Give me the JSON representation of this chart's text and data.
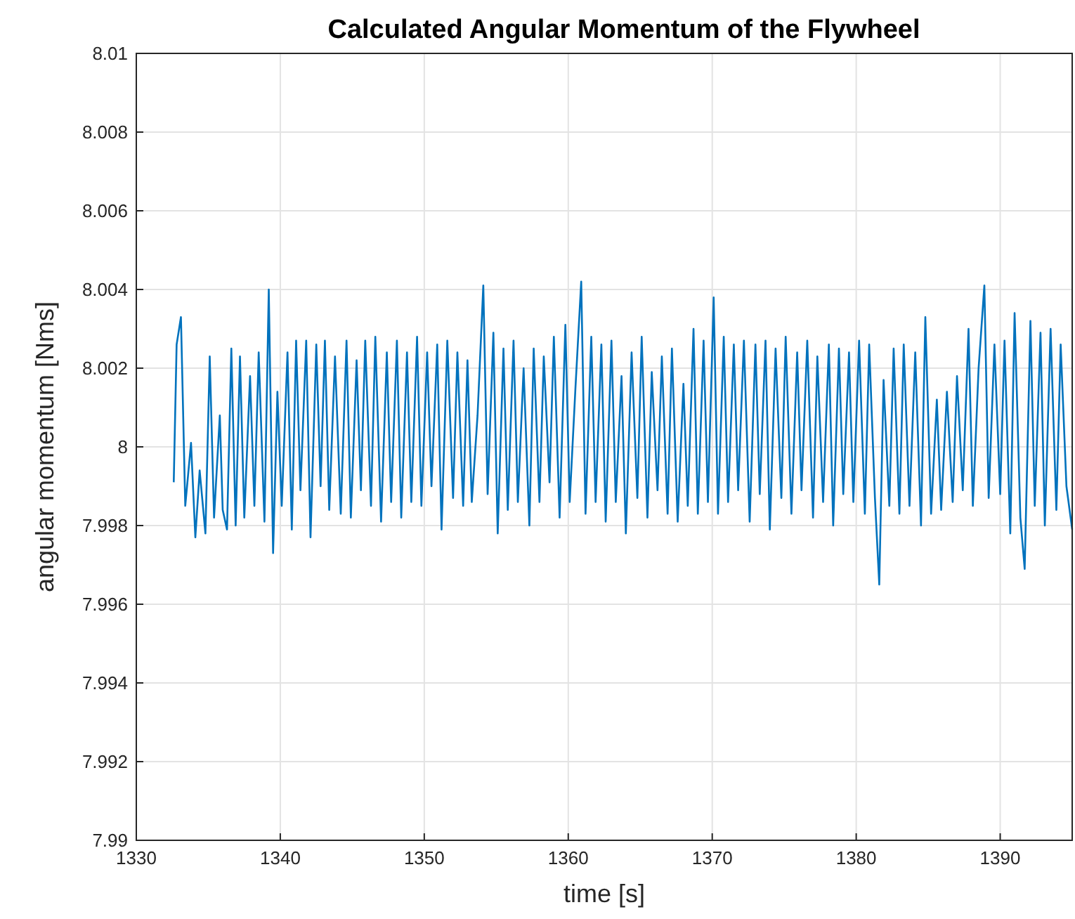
{
  "chart_data": {
    "type": "line",
    "title": "Calculated Angular Momentum of the Flywheel",
    "xlabel": "time [s]",
    "ylabel": "angular momentum [Nms]",
    "xlim": [
      1330,
      1395
    ],
    "xticks": [
      1330,
      1340,
      1350,
      1360,
      1370,
      1380,
      1390
    ],
    "ylim": [
      7.99,
      8.01
    ],
    "yticks": [
      7.99,
      7.992,
      7.994,
      7.996,
      7.998,
      {
        "value": 8,
        "label": "8"
      },
      8.002,
      8.004,
      8.006,
      8.008,
      8.01
    ],
    "grid": true,
    "marker": "none",
    "line_style": "solid",
    "series": [
      {
        "color": "#0072bd",
        "x": [
          1332.6,
          1332.8,
          1333.1,
          1333.4,
          1333.8,
          1334.1,
          1334.4,
          1334.8,
          1335.1,
          1335.4,
          1335.8,
          1336.0,
          1336.3,
          1336.6,
          1336.9,
          1337.2,
          1337.5,
          1337.9,
          1338.2,
          1338.5,
          1338.9,
          1339.2,
          1339.5,
          1339.8,
          1340.1,
          1340.5,
          1340.8,
          1341.1,
          1341.4,
          1341.8,
          1342.1,
          1342.5,
          1342.8,
          1343.1,
          1343.4,
          1343.8,
          1344.2,
          1344.6,
          1344.9,
          1345.3,
          1345.6,
          1345.9,
          1346.3,
          1346.6,
          1347.0,
          1347.4,
          1347.7,
          1348.1,
          1348.4,
          1348.8,
          1349.1,
          1349.5,
          1349.8,
          1350.2,
          1350.5,
          1350.9,
          1351.2,
          1351.6,
          1352.0,
          1352.3,
          1352.7,
          1353.0,
          1353.3,
          1353.7,
          1354.1,
          1354.4,
          1354.8,
          1355.1,
          1355.5,
          1355.8,
          1356.2,
          1356.5,
          1356.9,
          1357.3,
          1357.6,
          1358.0,
          1358.3,
          1358.7,
          1359.0,
          1359.4,
          1359.8,
          1360.1,
          1360.5,
          1360.9,
          1361.2,
          1361.6,
          1361.9,
          1362.3,
          1362.6,
          1363.0,
          1363.3,
          1363.7,
          1364.0,
          1364.4,
          1364.8,
          1365.1,
          1365.5,
          1365.8,
          1366.2,
          1366.5,
          1366.9,
          1367.2,
          1367.6,
          1368.0,
          1368.3,
          1368.7,
          1369.0,
          1369.4,
          1369.7,
          1370.1,
          1370.4,
          1370.8,
          1371.1,
          1371.5,
          1371.8,
          1372.2,
          1372.6,
          1373.0,
          1373.3,
          1373.7,
          1374.0,
          1374.4,
          1374.8,
          1375.1,
          1375.5,
          1375.9,
          1376.2,
          1376.6,
          1377.0,
          1377.3,
          1377.7,
          1378.1,
          1378.4,
          1378.8,
          1379.1,
          1379.5,
          1379.8,
          1380.2,
          1380.6,
          1380.9,
          1381.3,
          1381.6,
          1381.9,
          1382.3,
          1382.6,
          1383.0,
          1383.3,
          1383.7,
          1384.1,
          1384.5,
          1384.8,
          1385.2,
          1385.6,
          1385.9,
          1386.3,
          1386.7,
          1387.0,
          1387.4,
          1387.8,
          1388.1,
          1388.5,
          1388.9,
          1389.2,
          1389.6,
          1390.0,
          1390.3,
          1390.7,
          1391.0,
          1391.4,
          1391.7,
          1392.1,
          1392.4,
          1392.8,
          1393.1,
          1393.5,
          1393.9,
          1394.2,
          1394.6,
          1395.0
        ],
        "values": [
          7.9991,
          8.0026,
          8.0033,
          7.9985,
          8.0001,
          7.9977,
          7.9994,
          7.9978,
          8.0023,
          7.9982,
          8.0008,
          7.9984,
          7.9979,
          8.0025,
          7.998,
          8.0023,
          7.9982,
          8.0018,
          7.9985,
          8.0024,
          7.9981,
          8.004,
          7.9973,
          8.0014,
          7.9985,
          8.0024,
          7.9979,
          8.0027,
          7.9989,
          8.0027,
          7.9977,
          8.0026,
          7.999,
          8.0027,
          7.9984,
          8.0023,
          7.9983,
          8.0027,
          7.9982,
          8.0022,
          7.9989,
          8.0027,
          7.9985,
          8.0028,
          7.9981,
          8.0024,
          7.9986,
          8.0027,
          7.9982,
          8.0024,
          7.9986,
          8.0028,
          7.9985,
          8.0024,
          7.999,
          8.0026,
          7.9979,
          8.0027,
          7.9987,
          8.0024,
          7.9985,
          8.0022,
          7.9986,
          8.0008,
          8.0041,
          7.9988,
          8.0029,
          7.9978,
          8.0025,
          7.9984,
          8.0027,
          7.9986,
          8.002,
          7.998,
          8.0025,
          7.9986,
          8.0023,
          7.9991,
          8.0028,
          7.9982,
          8.0031,
          7.9986,
          8.0015,
          8.0042,
          7.9983,
          8.0028,
          7.9986,
          8.0026,
          7.9981,
          8.0027,
          7.9986,
          8.0018,
          7.9978,
          8.0024,
          7.9987,
          8.0028,
          7.9982,
          8.0019,
          7.9989,
          8.0023,
          7.9983,
          8.0025,
          7.9981,
          8.0016,
          7.9985,
          8.003,
          7.9983,
          8.0027,
          7.9986,
          8.0038,
          7.9983,
          8.0028,
          7.9986,
          8.0026,
          7.9989,
          8.0027,
          7.9981,
          8.0026,
          7.9988,
          8.0027,
          7.9979,
          8.0025,
          7.9987,
          8.0028,
          7.9983,
          8.0024,
          7.9989,
          8.0027,
          7.9982,
          8.0023,
          7.9986,
          8.0026,
          7.998,
          8.0025,
          7.9988,
          8.0024,
          7.9986,
          8.0027,
          7.9983,
          8.0026,
          7.9987,
          7.9965,
          8.0017,
          7.9985,
          8.0025,
          7.9983,
          8.0026,
          7.9985,
          8.0024,
          7.998,
          8.0033,
          7.9983,
          8.0012,
          7.9984,
          8.0014,
          7.9986,
          8.0018,
          7.9989,
          8.003,
          7.9985,
          8.002,
          8.0041,
          7.9987,
          8.0026,
          7.9988,
          8.0027,
          7.9978,
          8.0034,
          7.9982,
          7.9969,
          8.0032,
          7.9985,
          8.0029,
          7.998,
          8.003,
          7.9984,
          8.0026,
          7.999,
          7.9979
        ]
      }
    ]
  }
}
